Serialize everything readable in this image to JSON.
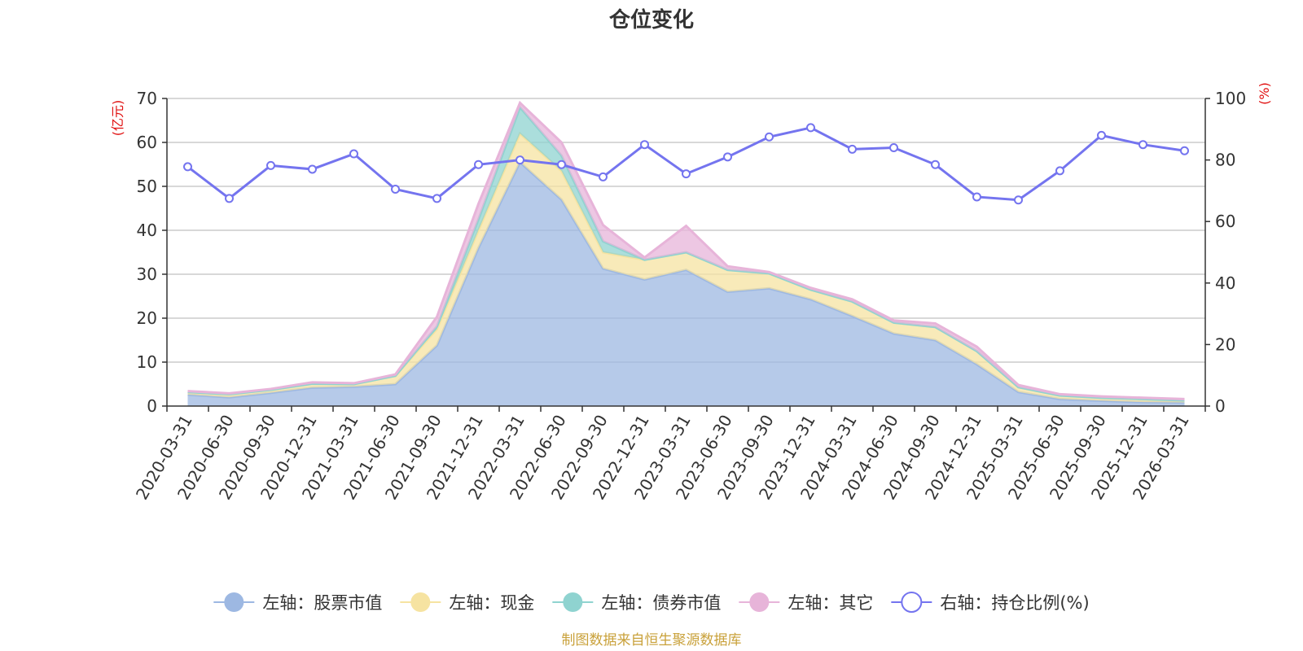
{
  "chart_data": {
    "type": "area",
    "title": "仓位变化",
    "source_note": "制图数据来自恒生聚源数据库",
    "left_axis": {
      "unit_label": "(亿元)",
      "ylim": [
        0,
        70
      ],
      "ticks": [
        0,
        10,
        20,
        30,
        40,
        50,
        60,
        70
      ]
    },
    "right_axis": {
      "unit_label": "(%)",
      "ylim": [
        0,
        100
      ],
      "ticks": [
        0,
        20,
        40,
        60,
        80,
        100
      ]
    },
    "categories": [
      "2020-03-31",
      "2020-06-30",
      "2020-09-30",
      "2020-12-31",
      "2021-03-31",
      "2021-06-30",
      "2021-09-30",
      "2021-12-31",
      "2022-03-31",
      "2022-06-30",
      "2022-09-30",
      "2022-12-31",
      "2023-03-31",
      "2023-06-30",
      "2023-09-30",
      "2023-12-31",
      "2024-03-31",
      "2024-06-30",
      "2024-09-30",
      "2024-12-31",
      "2025-03-31",
      "2025-06-30",
      "2025-09-30",
      "2025-12-31",
      "2026-03-31"
    ],
    "series": [
      {
        "name": "左轴：股票市值",
        "axis": "left",
        "color": "#9db8e2",
        "values": [
          2.6,
          2.0,
          3.0,
          4.2,
          4.4,
          5.0,
          13.8,
          36.0,
          55.5,
          47.0,
          31.3,
          28.8,
          31.0,
          26.0,
          26.8,
          24.3,
          20.5,
          16.5,
          15.0,
          9.5,
          3.2,
          1.6,
          1.2,
          0.9,
          0.8
        ]
      },
      {
        "name": "左轴：现金",
        "axis": "left",
        "color": "#f6e3a1",
        "values": [
          0.6,
          0.7,
          0.7,
          0.9,
          0.6,
          1.9,
          3.7,
          4.0,
          6.5,
          6.5,
          3.7,
          4.5,
          4.0,
          5.0,
          3.4,
          2.2,
          3.3,
          2.5,
          3.0,
          3.0,
          1.1,
          0.8,
          0.7,
          0.7,
          0.5
        ]
      },
      {
        "name": "左轴：债券市值",
        "axis": "left",
        "color": "#8fd3d0",
        "values": [
          0,
          0,
          0,
          0,
          0,
          0,
          0.6,
          2.5,
          6.0,
          3.5,
          2.5,
          0,
          0,
          0,
          0,
          0,
          0,
          0,
          0,
          0,
          0,
          0,
          0,
          0,
          0
        ]
      },
      {
        "name": "左轴：其它",
        "axis": "left",
        "color": "#e7b4d9",
        "values": [
          0.2,
          0.2,
          0.2,
          0.3,
          0.2,
          0.3,
          2.2,
          3.5,
          1.0,
          3.0,
          3.7,
          0.5,
          6.0,
          0.8,
          0.3,
          0.4,
          0.5,
          0.5,
          0.8,
          1.0,
          0.5,
          0.3,
          0.3,
          0.3,
          0.3
        ]
      },
      {
        "name": "右轴：持仓比例(%)",
        "axis": "right",
        "color": "#7474ef",
        "values": [
          77.8,
          67.5,
          78.2,
          77.0,
          82.0,
          70.5,
          67.5,
          78.5,
          80.0,
          78.5,
          74.5,
          85.0,
          75.5,
          81.0,
          87.5,
          90.5,
          83.5,
          84.0,
          78.5,
          68.0,
          67.0,
          76.5,
          88.0,
          85.0,
          83.0
        ]
      }
    ]
  }
}
